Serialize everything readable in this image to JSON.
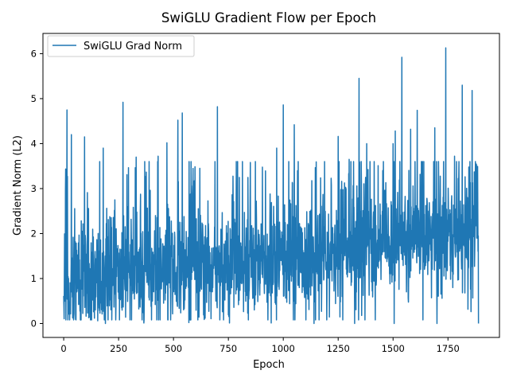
{
  "chart_data": {
    "type": "line",
    "title": "SwiGLU Gradient Flow per Epoch",
    "xlabel": "Epoch",
    "ylabel": "Gradient Norm (L2)",
    "xlim": [
      -94.5,
      1984.5
    ],
    "ylim": [
      -0.31,
      6.45
    ],
    "x_ticks": [
      0,
      250,
      500,
      750,
      1000,
      1250,
      1500,
      1750
    ],
    "y_ticks": [
      0,
      1,
      2,
      3,
      4,
      5,
      6
    ],
    "x_tick_labels": [
      "0",
      "250",
      "500",
      "750",
      "1000",
      "1250",
      "1500",
      "1750"
    ],
    "y_tick_labels": [
      "0",
      "1",
      "2",
      "3",
      "4",
      "5",
      "6"
    ],
    "legend_position": "upper-left",
    "grid": false,
    "n_points": 1890,
    "series": [
      {
        "name": "SwiGLU Grad Norm",
        "color": "#1f77b4",
        "baseline": [
          [
            0,
            0.8
          ],
          [
            250,
            1.05
          ],
          [
            500,
            1.2
          ],
          [
            750,
            1.3
          ],
          [
            1000,
            1.4
          ],
          [
            1250,
            1.55
          ],
          [
            1500,
            1.75
          ],
          [
            1750,
            1.95
          ],
          [
            1889,
            2.0
          ]
        ],
        "peaks": [
          [
            8,
            2.95
          ],
          [
            15,
            4.75
          ],
          [
            35,
            4.2
          ],
          [
            95,
            4.15
          ],
          [
            180,
            3.9
          ],
          [
            270,
            4.92
          ],
          [
            330,
            3.7
          ],
          [
            430,
            3.72
          ],
          [
            470,
            4.02
          ],
          [
            520,
            4.52
          ],
          [
            540,
            4.68
          ],
          [
            620,
            3.45
          ],
          [
            700,
            4.82
          ],
          [
            800,
            3.25
          ],
          [
            850,
            3.58
          ],
          [
            970,
            3.9
          ],
          [
            1000,
            4.86
          ],
          [
            1050,
            4.42
          ],
          [
            1250,
            4.16
          ],
          [
            1300,
            3.65
          ],
          [
            1345,
            5.45
          ],
          [
            1380,
            4.0
          ],
          [
            1500,
            4.0
          ],
          [
            1510,
            4.28
          ],
          [
            1540,
            5.92
          ],
          [
            1580,
            4.32
          ],
          [
            1610,
            4.74
          ],
          [
            1690,
            4.35
          ],
          [
            1740,
            6.13
          ],
          [
            1780,
            3.72
          ],
          [
            1815,
            5.3
          ],
          [
            1860,
            5.18
          ],
          [
            1880,
            3.52
          ]
        ],
        "dips": [
          [
            155,
            0.06
          ],
          [
            190,
            0.0
          ],
          [
            365,
            0.01
          ],
          [
            570,
            0.02
          ],
          [
            755,
            0.01
          ],
          [
            945,
            0.01
          ],
          [
            1140,
            0.0
          ],
          [
            1325,
            0.0
          ],
          [
            1505,
            0.0
          ],
          [
            1700,
            0.0
          ],
          [
            1889,
            0.0
          ]
        ]
      }
    ]
  }
}
